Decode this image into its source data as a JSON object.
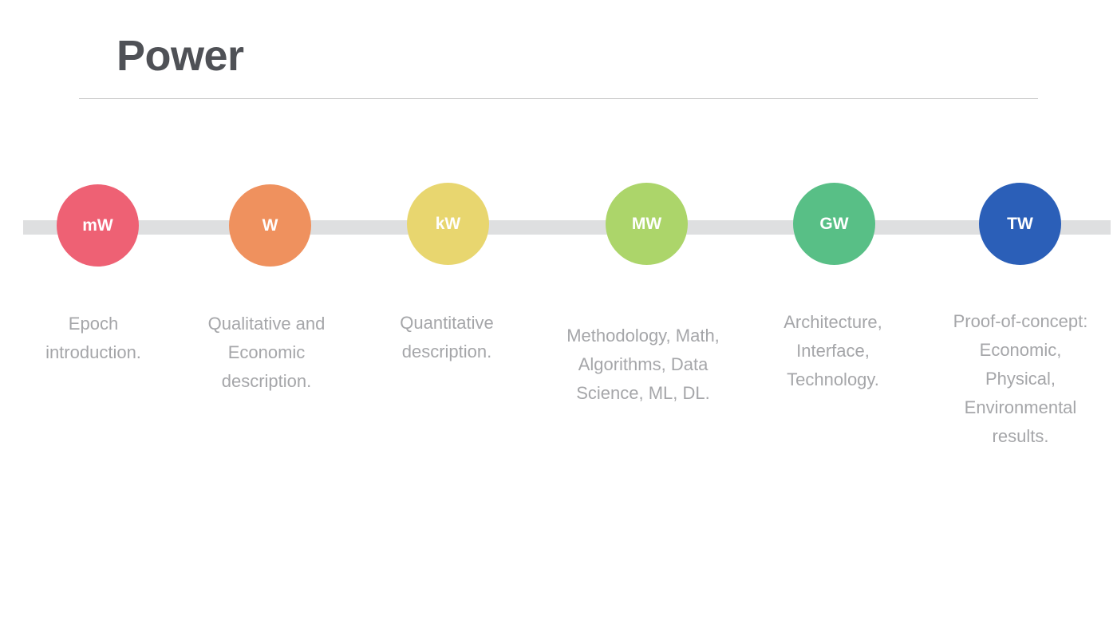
{
  "slide": {
    "title": "Power"
  },
  "stages": [
    {
      "unit": "mW",
      "color": "#ee6174",
      "description": "Epoch introduction."
    },
    {
      "unit": "W",
      "color": "#ef915e",
      "description": "Qualitative and Economic description."
    },
    {
      "unit": "kW",
      "color": "#e8d66f",
      "description": "Quantitative description."
    },
    {
      "unit": "MW",
      "color": "#acd56a",
      "description": "Methodology, Math, Algorithms, Data Science, ML, DL."
    },
    {
      "unit": "GW",
      "color": "#58bf86",
      "description": "Architecture, Interface, Technology."
    },
    {
      "unit": "TW",
      "color": "#2b5fb8",
      "description": "Proof-of-concept: Economic, Physical, Environmental results."
    }
  ]
}
